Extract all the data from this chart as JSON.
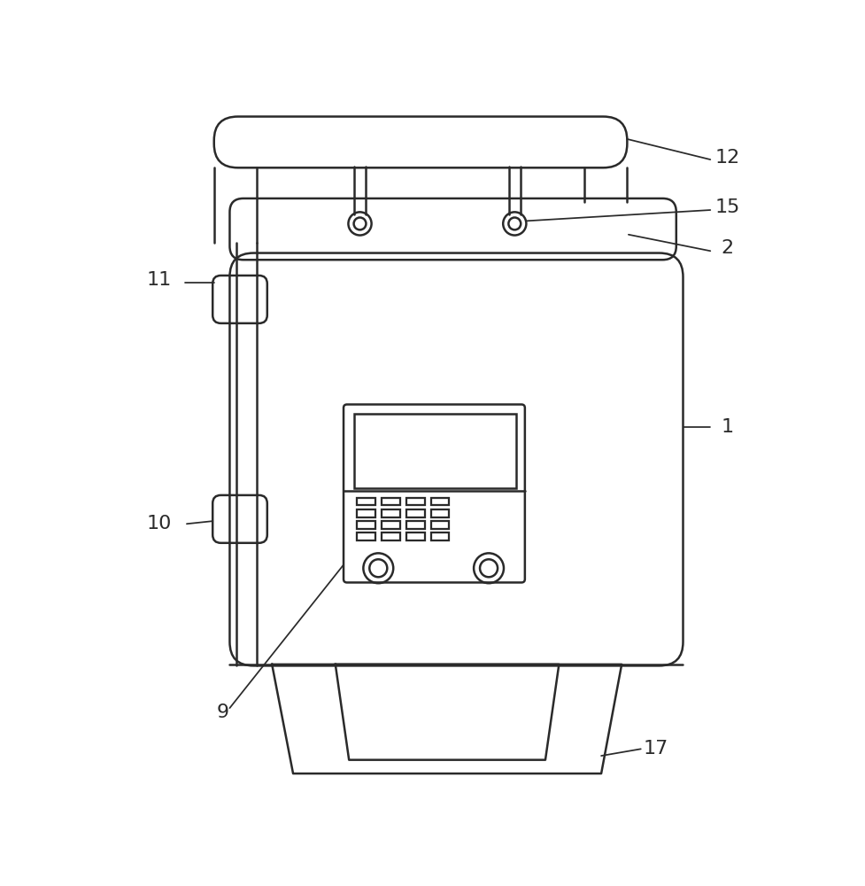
{
  "bg_color": "#ffffff",
  "line_color": "#2a2a2a",
  "line_width": 1.8,
  "fig_width": 9.78,
  "fig_height": 10.0,
  "label_fontsize": 16,
  "label_color": "#2a2a2a"
}
